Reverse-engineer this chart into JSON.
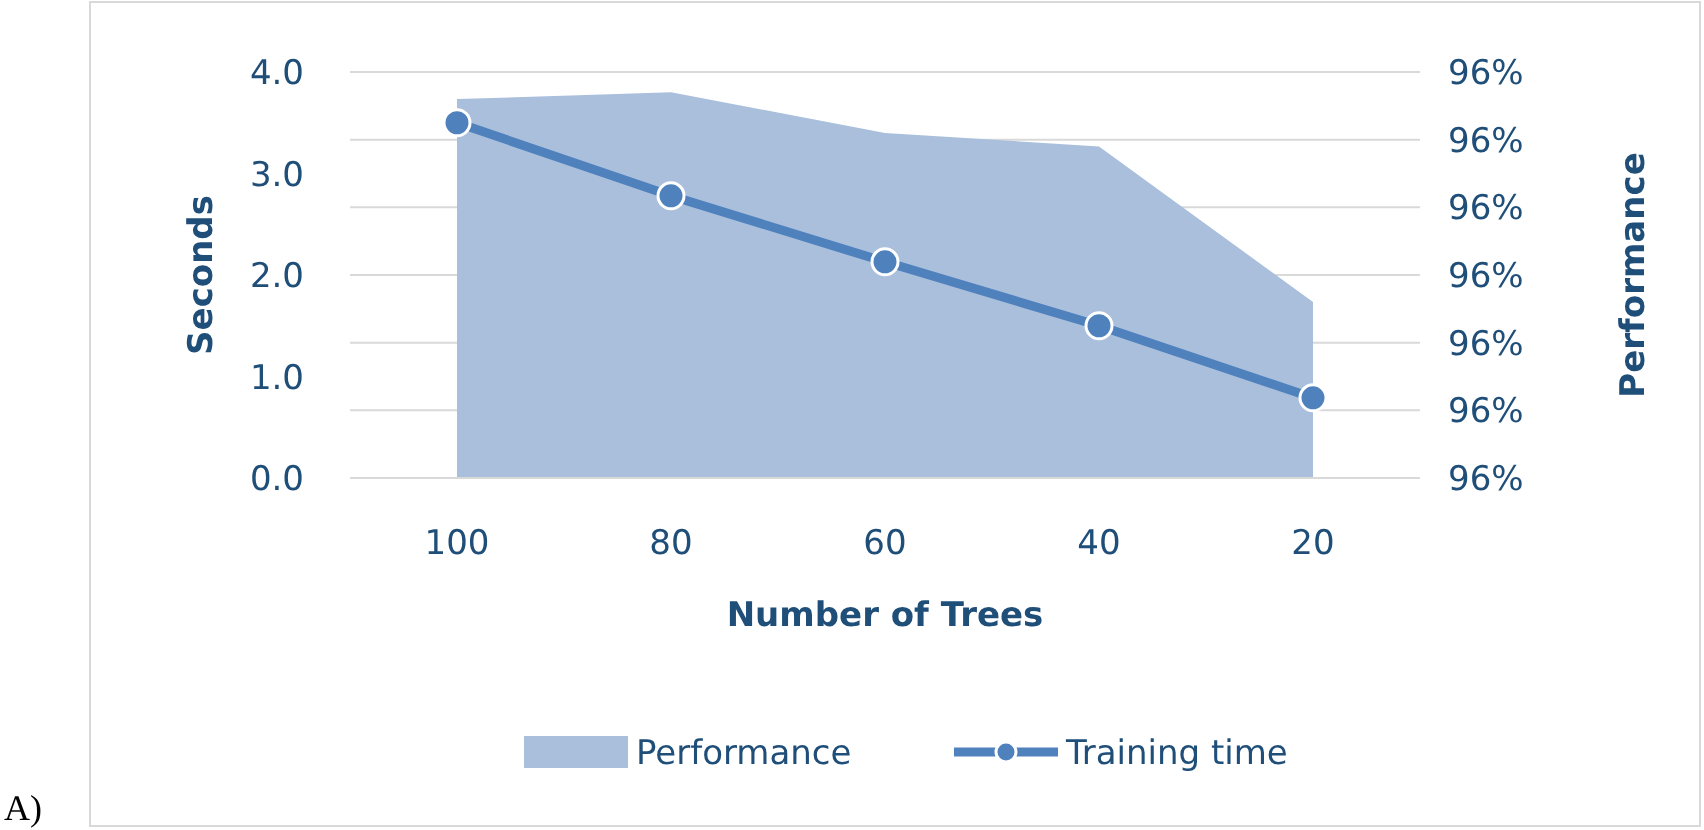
{
  "chart_data": {
    "type": "line",
    "xlabel": "Number of Trees",
    "ylabel": "Seconds",
    "y2label": "Performance",
    "categories": [
      "100",
      "80",
      "60",
      "40",
      "20"
    ],
    "series": [
      {
        "name": "Performance",
        "type": "area",
        "axis": "y2",
        "color": "#a9bfdc",
        "values": [
          96.26,
          96.27,
          96.21,
          96.19,
          95.96
        ]
      },
      {
        "name": "Training time",
        "color": "#4f81bd",
        "marker": "circle",
        "values": [
          3.5,
          2.78,
          2.13,
          1.5,
          0.79
        ]
      }
    ],
    "ylim": [
      0,
      4
    ],
    "yticks": [
      {
        "value": 0,
        "label": "0.0"
      },
      {
        "value": 1,
        "label": "1.0"
      },
      {
        "value": 2,
        "label": "2.0"
      },
      {
        "value": 3,
        "label": "3.0"
      },
      {
        "value": 4,
        "label": "4.0"
      }
    ],
    "y2lim": [
      95.7,
      96.3
    ],
    "y2ticks": [
      {
        "value": 95.7,
        "label": "96%"
      },
      {
        "value": 95.8,
        "label": "96%"
      },
      {
        "value": 95.9,
        "label": "96%"
      },
      {
        "value": 96.0,
        "label": "96%"
      },
      {
        "value": 96.1,
        "label": "96%"
      },
      {
        "value": 96.2,
        "label": "96%"
      },
      {
        "value": 96.3,
        "label": "96%"
      }
    ],
    "grid": "y2",
    "legend": "bottom",
    "annotations": [
      "A)"
    ]
  }
}
